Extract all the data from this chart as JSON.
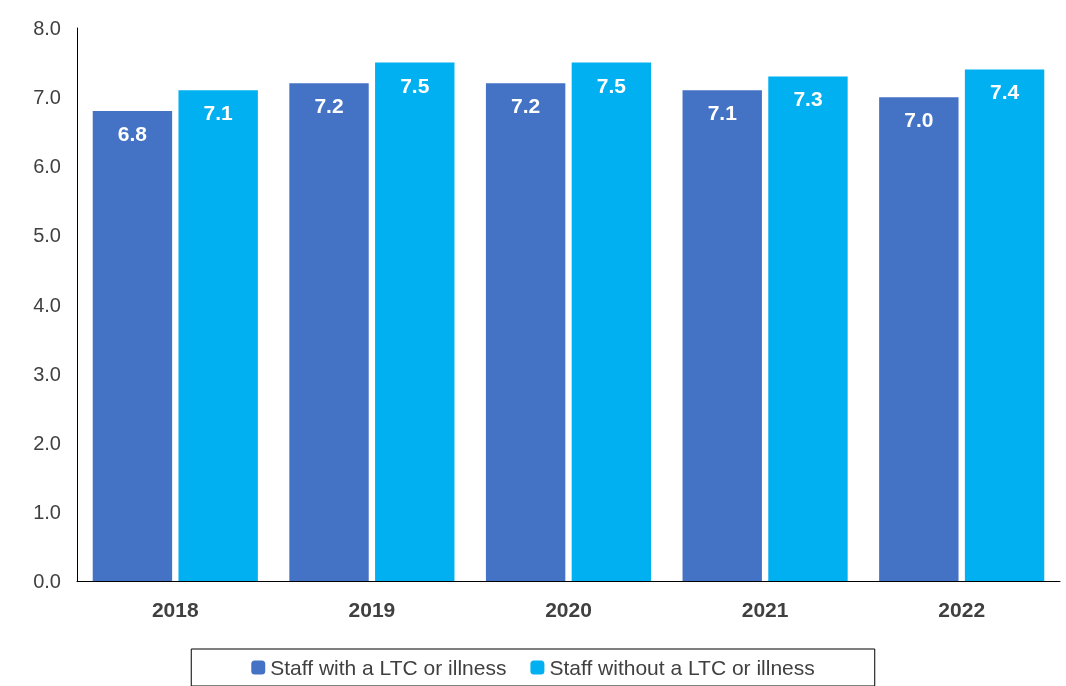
{
  "chart_data": {
    "type": "bar",
    "categories": [
      "2018",
      "2019",
      "2020",
      "2021",
      "2022"
    ],
    "series": [
      {
        "name": "Staff with a LTC or illness",
        "color": "#4472c4",
        "values": [
          6.8,
          7.2,
          7.2,
          7.1,
          7.0
        ],
        "value_labels": [
          "6.8",
          "7.2",
          "7.2",
          "7.1",
          "7.0"
        ]
      },
      {
        "name": "Staff without a LTC or illness",
        "color": "#00b0f0",
        "values": [
          7.1,
          7.5,
          7.5,
          7.3,
          7.4
        ],
        "value_labels": [
          "7.1",
          "7.5",
          "7.5",
          "7.3",
          "7.4"
        ]
      }
    ],
    "ylim": [
      0,
      8
    ],
    "yticks": [
      {
        "value": 0,
        "label": "0.0"
      },
      {
        "value": 1,
        "label": "1.0"
      },
      {
        "value": 2,
        "label": "2.0"
      },
      {
        "value": 3,
        "label": "3.0"
      },
      {
        "value": 4,
        "label": "4.0"
      },
      {
        "value": 5,
        "label": "5.0"
      },
      {
        "value": 6,
        "label": "6.0"
      },
      {
        "value": 7,
        "label": "7.0"
      },
      {
        "value": 8,
        "label": "8.0"
      }
    ],
    "grid": false,
    "legend": "bottom"
  }
}
